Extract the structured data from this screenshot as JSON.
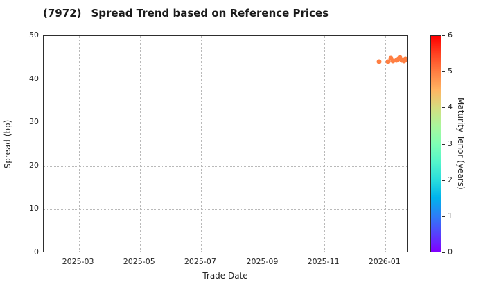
{
  "header": {
    "ticker": "(7972)",
    "title": "Spread Trend based on Reference Prices"
  },
  "chart_data": {
    "type": "scatter",
    "title": "(7972) Spread Trend based on Reference Prices",
    "xlabel": "Trade Date",
    "ylabel": "Spread (bp)",
    "x_range": [
      "2025-01-25",
      "2026-01-24"
    ],
    "ylim": [
      0,
      50
    ],
    "y_ticks": [
      0,
      10,
      20,
      30,
      40,
      50
    ],
    "x_ticks": [
      {
        "label": "2025-03",
        "date": "2025-03-01"
      },
      {
        "label": "2025-05",
        "date": "2025-05-01"
      },
      {
        "label": "2025-07",
        "date": "2025-07-01"
      },
      {
        "label": "2025-09",
        "date": "2025-09-01"
      },
      {
        "label": "2025-11",
        "date": "2025-11-01"
      },
      {
        "label": "2026-01",
        "date": "2026-01-01"
      }
    ],
    "grid": true,
    "legend_position": "none",
    "colorbar": {
      "label": "Maturity Tenor (years)",
      "min": 0,
      "max": 6,
      "ticks": [
        0,
        1,
        2,
        3,
        4,
        5,
        6
      ],
      "colormap": "rainbow"
    },
    "points": [
      {
        "trade_date": "2025-12-26",
        "spread_bp": 44.1,
        "maturity_years": 5.0
      },
      {
        "trade_date": "2026-01-04",
        "spread_bp": 44.1,
        "maturity_years": 5.0
      },
      {
        "trade_date": "2026-01-07",
        "spread_bp": 44.9,
        "maturity_years": 5.0
      },
      {
        "trade_date": "2026-01-09",
        "spread_bp": 44.2,
        "maturity_years": 5.0
      },
      {
        "trade_date": "2026-01-12",
        "spread_bp": 44.4,
        "maturity_years": 5.0
      },
      {
        "trade_date": "2026-01-14",
        "spread_bp": 44.7,
        "maturity_years": 5.0
      },
      {
        "trade_date": "2026-01-16",
        "spread_bp": 45.0,
        "maturity_years": 5.0
      },
      {
        "trade_date": "2026-01-18",
        "spread_bp": 44.4,
        "maturity_years": 5.0
      },
      {
        "trade_date": "2026-01-20",
        "spread_bp": 44.3,
        "maturity_years": 5.0
      },
      {
        "trade_date": "2026-01-21",
        "spread_bp": 44.7,
        "maturity_years": 5.0
      },
      {
        "trade_date": "2026-01-23",
        "spread_bp": 44.6,
        "maturity_years": 5.0
      }
    ]
  }
}
